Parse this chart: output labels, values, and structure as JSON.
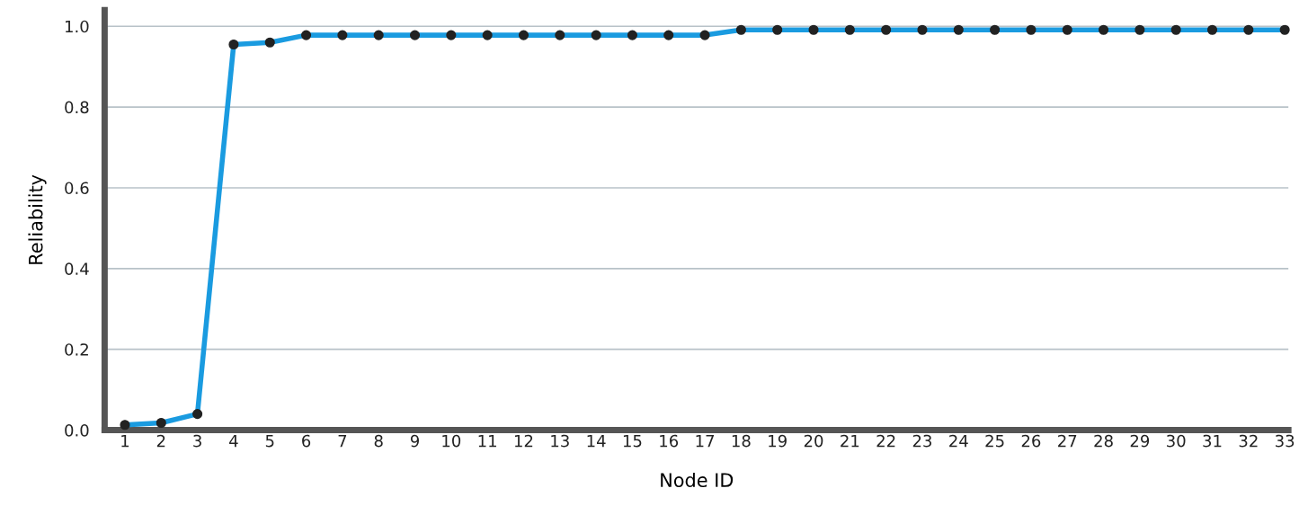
{
  "chart_data": {
    "type": "line",
    "xlabel": "Node ID",
    "ylabel": "Reliability",
    "categories": [
      "1",
      "2",
      "3",
      "4",
      "5",
      "6",
      "7",
      "8",
      "9",
      "10",
      "11",
      "12",
      "13",
      "14",
      "15",
      "16",
      "17",
      "18",
      "19",
      "20",
      "21",
      "22",
      "23",
      "24",
      "25",
      "26",
      "27",
      "28",
      "29",
      "30",
      "31",
      "32",
      "33"
    ],
    "series": [
      {
        "color": "#1a9be0",
        "values": [
          0.013,
          0.018,
          0.04,
          0.955,
          0.96,
          0.978,
          0.978,
          0.978,
          0.978,
          0.978,
          0.978,
          0.978,
          0.978,
          0.978,
          0.978,
          0.978,
          0.978,
          0.991,
          0.991,
          0.991,
          0.991,
          0.991,
          0.991,
          0.991,
          0.991,
          0.991,
          0.991,
          0.991,
          0.991,
          0.991,
          0.991,
          0.991,
          0.991
        ]
      }
    ],
    "ylim": [
      0,
      1.04
    ],
    "yticks": [
      {
        "value": 0,
        "label": "0.0"
      },
      0.2,
      0.4,
      0.6,
      0.8,
      {
        "value": 1,
        "label": "1.0"
      }
    ],
    "grid": "y",
    "marker": "circle",
    "line_style": "solid"
  }
}
